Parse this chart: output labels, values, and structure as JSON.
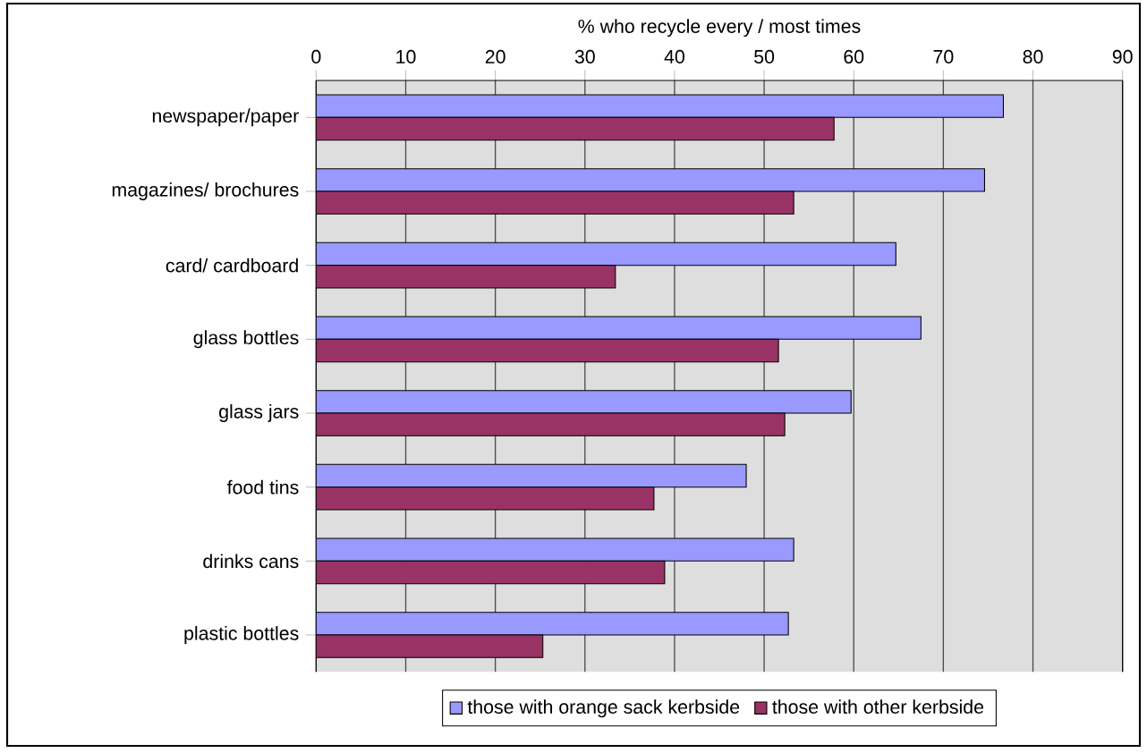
{
  "chart_data": {
    "type": "bar",
    "orientation": "horizontal",
    "xlabel": "% who recycle every / most times",
    "categories": [
      "newspaper/paper",
      "magazines/ brochures",
      "card/ cardboard",
      "glass bottles",
      "glass jars",
      "food tins",
      "drinks cans",
      "plastic bottles"
    ],
    "series": [
      {
        "name": "those with orange sack kerbside",
        "color": "#9999ff",
        "values": [
          76.7,
          74.6,
          64.7,
          67.5,
          59.7,
          48.0,
          53.3,
          52.7
        ]
      },
      {
        "name": "those with other kerbside",
        "color": "#993366",
        "values": [
          57.8,
          53.3,
          33.4,
          51.6,
          52.3,
          37.7,
          38.9,
          25.3
        ]
      }
    ],
    "xlim": [
      0,
      90
    ],
    "xticks": [
      0,
      10,
      20,
      30,
      40,
      50,
      60,
      70,
      80,
      90
    ],
    "grid": "x",
    "legend": "bottom"
  }
}
